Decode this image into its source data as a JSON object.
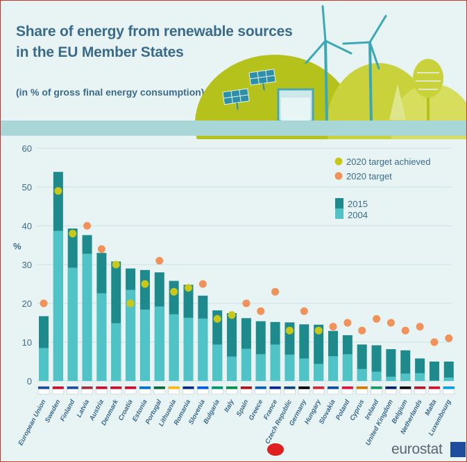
{
  "header": {
    "title_line1": "Share of energy from renewable sources",
    "title_line2": "in the EU Member States",
    "subtitle": "(in % of gross final energy consumption)"
  },
  "logo": {
    "text": "eurostat"
  },
  "colors": {
    "bar_2015": "#1f8a8c",
    "bar_2004": "#4fc3c5",
    "target_achieved": "#c8c81a",
    "target": "#f0925a",
    "axis_text": "#3a6b8c"
  },
  "chart_data": {
    "type": "bar",
    "title": "Share of energy from renewable sources in the EU Member States",
    "subtitle": "(in % of gross final energy consumption)",
    "ylabel": "%",
    "ylim": [
      0,
      60
    ],
    "yticks": [
      0,
      10,
      20,
      30,
      40,
      50,
      60
    ],
    "grid": true,
    "legend_position": "top-right",
    "legend": {
      "target_achieved": "2020 target achieved",
      "target": "2020 target",
      "series_2015": "2015",
      "series_2004": "2004"
    },
    "categories": [
      "European Union",
      "Sweden",
      "Finland",
      "Latvia",
      "Austria",
      "Denmark",
      "Croatia",
      "Estonia",
      "Portugal",
      "Lithuania",
      "Romania",
      "Slovenia",
      "Bulgaria",
      "Italy",
      "Spain",
      "Greece",
      "France",
      "Czech Republic",
      "Germany",
      "Hungary",
      "Slovakia",
      "Poland",
      "Cyprus",
      "Ireland",
      "United Kingdom",
      "Belgium",
      "Netherlands",
      "Malta",
      "Luxembourg"
    ],
    "series": [
      {
        "name": "2015",
        "values": [
          16.7,
          53.9,
          39.3,
          37.6,
          33.0,
          30.8,
          29.0,
          28.6,
          28.0,
          25.8,
          24.8,
          22.0,
          18.2,
          17.5,
          16.2,
          15.4,
          15.2,
          15.1,
          14.6,
          14.5,
          12.9,
          11.8,
          9.4,
          9.2,
          8.2,
          7.9,
          5.8,
          5.0,
          5.0
        ]
      },
      {
        "name": "2004",
        "values": [
          8.5,
          38.7,
          29.2,
          32.8,
          22.6,
          14.9,
          23.5,
          18.4,
          19.2,
          17.2,
          16.3,
          16.1,
          9.4,
          6.3,
          8.3,
          6.9,
          9.4,
          6.8,
          5.8,
          4.4,
          6.4,
          6.9,
          3.1,
          2.4,
          1.1,
          1.9,
          2.0,
          0.1,
          0.9
        ]
      }
    ],
    "target_2020": [
      20,
      49,
      38,
      40,
      34,
      30,
      20,
      25,
      31,
      23,
      24,
      25,
      16,
      17,
      20,
      18,
      23,
      13,
      18,
      13,
      14,
      15,
      13,
      16,
      15,
      13,
      14,
      10,
      11
    ],
    "target_achieved": [
      false,
      true,
      true,
      false,
      false,
      true,
      true,
      true,
      false,
      true,
      true,
      false,
      true,
      true,
      false,
      false,
      false,
      true,
      false,
      true,
      false,
      false,
      false,
      false,
      false,
      false,
      false,
      false,
      false
    ]
  }
}
